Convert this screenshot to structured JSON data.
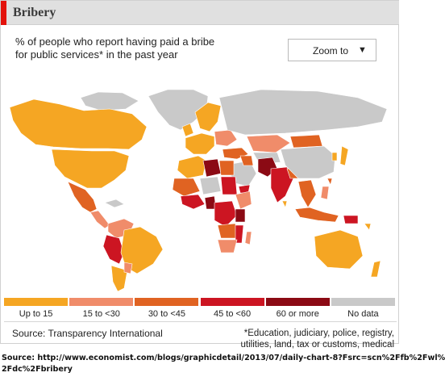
{
  "header": {
    "title": "Bribery"
  },
  "subtitle_lines": [
    "% of people who report having paid a bribe",
    "for public services* in the past year"
  ],
  "zoom": {
    "label": "Zoom to",
    "arrow": "▼"
  },
  "colors": {
    "title_accent": "#e3120b",
    "ocean": "#ffffff",
    "no_data": "#c9c9c9",
    "up_to_15": "#f5a623",
    "15_to_30": "#f08c6a",
    "30_to_45": "#e06322",
    "45_to_60": "#cc1522",
    "60_or_more": "#8b0a14"
  },
  "legend": [
    {
      "label": "Up to 15",
      "color": "#f5a623"
    },
    {
      "label": "15 to <30",
      "color": "#f08c6a"
    },
    {
      "label": "30 to <45",
      "color": "#e06322"
    },
    {
      "label": "45 to <60",
      "color": "#cc1522"
    },
    {
      "label": "60 or more",
      "color": "#8b0a14"
    },
    {
      "label": "No data",
      "color": "#c9c9c9"
    }
  ],
  "source": "Source: Transparency International",
  "footnote_lines": [
    "*Education, judiciary, police, registry,",
    "utilities, land, tax or customs, medical"
  ],
  "credit_lines": [
    "Source: http://www.economist.com/blogs/graphicdetail/2013/07/daily-chart-8?Fsrc=scn%2Ffb%2Fwl%",
    "2Fdc%2Fbribery"
  ]
}
